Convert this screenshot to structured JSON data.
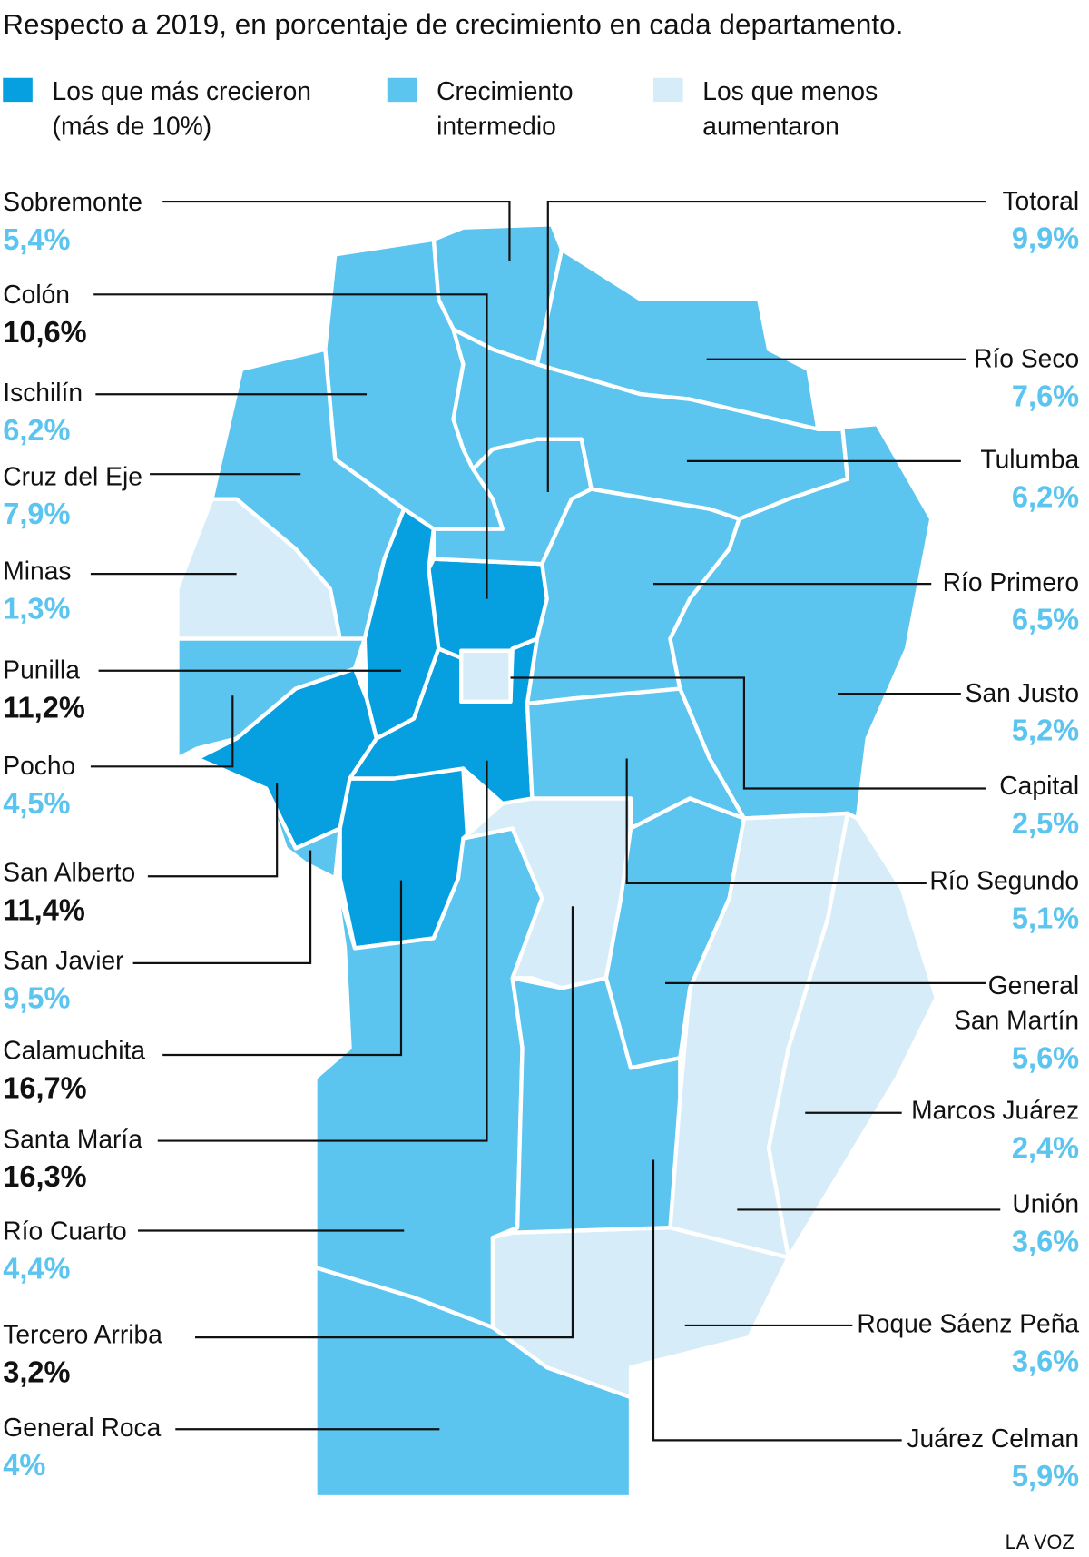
{
  "title": "Respecto a 2019, en porcentaje de crecimiento en cada departamento.",
  "legend": [
    {
      "label": [
        "Los que más crecieron",
        "(más de 10%)"
      ],
      "color": "#069fe0"
    },
    {
      "label": [
        "Crecimiento",
        "intermedio"
      ],
      "color": "#5bc4ef"
    },
    {
      "label": [
        "Los que menos",
        "aumentaron"
      ],
      "color": "#d6edf9"
    }
  ],
  "departments": [
    {
      "name": [
        "Sobremonte"
      ],
      "value": "5,4%",
      "color": "#5bc4ef",
      "value_color": "#5bc4ef"
    },
    {
      "name": [
        "Colón"
      ],
      "value": "10,6%",
      "color": "#069fe0",
      "value_color": "#111111"
    },
    {
      "name": [
        "Ischilín"
      ],
      "value": "6,2%",
      "color": "#5bc4ef",
      "value_color": "#5bc4ef"
    },
    {
      "name": [
        "Cruz del Eje"
      ],
      "value": "7,9%",
      "color": "#5bc4ef",
      "value_color": "#5bc4ef"
    },
    {
      "name": [
        "Minas"
      ],
      "value": "1,3%",
      "color": "#d6edf9",
      "value_color": "#5bc4ef"
    },
    {
      "name": [
        "Punilla"
      ],
      "value": "11,2%",
      "color": "#069fe0",
      "value_color": "#111111"
    },
    {
      "name": [
        "Pocho"
      ],
      "value": "4,5%",
      "color": "#5bc4ef",
      "value_color": "#5bc4ef"
    },
    {
      "name": [
        "San Alberto"
      ],
      "value": "11,4%",
      "color": "#069fe0",
      "value_color": "#111111"
    },
    {
      "name": [
        "San Javier"
      ],
      "value": "9,5%",
      "color": "#5bc4ef",
      "value_color": "#5bc4ef"
    },
    {
      "name": [
        "Calamuchita"
      ],
      "value": "16,7%",
      "color": "#069fe0",
      "value_color": "#111111"
    },
    {
      "name": [
        "Santa María"
      ],
      "value": "16,3%",
      "color": "#069fe0",
      "value_color": "#111111"
    },
    {
      "name": [
        "Río Cuarto"
      ],
      "value": "4,4%",
      "color": "#5bc4ef",
      "value_color": "#5bc4ef"
    },
    {
      "name": [
        "Tercero Arriba"
      ],
      "value": "3,2%",
      "color": "#d6edf9",
      "value_color": "#111111"
    },
    {
      "name": [
        "General Roca"
      ],
      "value": "4%",
      "color": "#5bc4ef",
      "value_color": "#5bc4ef"
    },
    {
      "name": [
        "Totoral"
      ],
      "value": "9,9%",
      "color": "#5bc4ef",
      "value_color": "#5bc4ef"
    },
    {
      "name": [
        "Río Seco"
      ],
      "value": "7,6%",
      "color": "#5bc4ef",
      "value_color": "#5bc4ef"
    },
    {
      "name": [
        "Tulumba"
      ],
      "value": "6,2%",
      "color": "#5bc4ef",
      "value_color": "#5bc4ef"
    },
    {
      "name": [
        "Río Primero"
      ],
      "value": "6,5%",
      "color": "#5bc4ef",
      "value_color": "#5bc4ef"
    },
    {
      "name": [
        "San Justo"
      ],
      "value": "5,2%",
      "color": "#5bc4ef",
      "value_color": "#5bc4ef"
    },
    {
      "name": [
        "Capital"
      ],
      "value": "2,5%",
      "color": "#d6edf9",
      "value_color": "#5bc4ef"
    },
    {
      "name": [
        "Río Segundo"
      ],
      "value": "5,1%",
      "color": "#5bc4ef",
      "value_color": "#5bc4ef"
    },
    {
      "name": [
        "General",
        "San Martín"
      ],
      "value": "5,6%",
      "color": "#5bc4ef",
      "value_color": "#5bc4ef"
    },
    {
      "name": [
        "Marcos Juárez"
      ],
      "value": "2,4%",
      "color": "#d6edf9",
      "value_color": "#5bc4ef"
    },
    {
      "name": [
        "Unión"
      ],
      "value": "3,6%",
      "color": "#d6edf9",
      "value_color": "#5bc4ef"
    },
    {
      "name": [
        "Roque Sáenz Peña"
      ],
      "value": "3,6%",
      "color": "#d6edf9",
      "value_color": "#5bc4ef"
    },
    {
      "name": [
        "Juárez Celman"
      ],
      "value": "5,9%",
      "color": "#5bc4ef",
      "value_color": "#5bc4ef"
    }
  ],
  "source": "LA VOZ"
}
